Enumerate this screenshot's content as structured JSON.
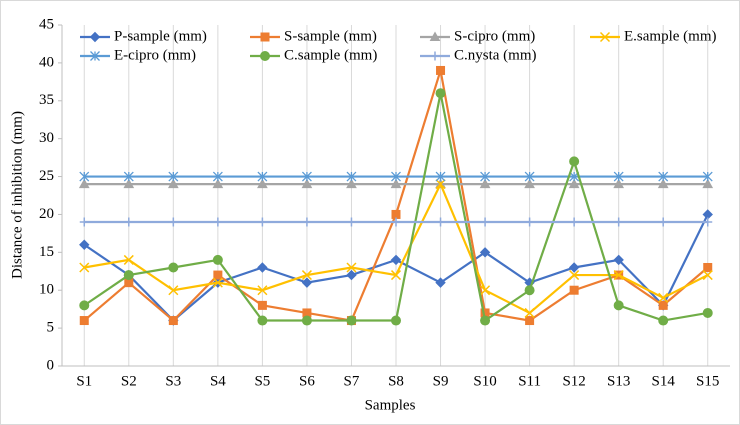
{
  "chart_data": {
    "type": "line",
    "x_label": "Samples",
    "y_label": "Distance of inhibition (mm)",
    "categories": [
      "S1",
      "S2",
      "S3",
      "S4",
      "S5",
      "S6",
      "S7",
      "S8",
      "S9",
      "S10",
      "S11",
      "S12",
      "S13",
      "S14",
      "S15"
    ],
    "series": [
      {
        "name": "P-sample (mm)",
        "color": "#4472c4",
        "marker": "diamond",
        "values": [
          16,
          12,
          6,
          11,
          13,
          11,
          12,
          14,
          11,
          15,
          11,
          13,
          14,
          8,
          20
        ]
      },
      {
        "name": "S-sample (mm)",
        "color": "#ed7d31",
        "marker": "square",
        "values": [
          6,
          11,
          6,
          12,
          8,
          7,
          6,
          20,
          39,
          7,
          6,
          10,
          12,
          8,
          13
        ]
      },
      {
        "name": "S-cipro (mm)",
        "color": "#a5a5a5",
        "marker": "triangle",
        "values": [
          24,
          24,
          24,
          24,
          24,
          24,
          24,
          24,
          24,
          24,
          24,
          24,
          24,
          24,
          24
        ]
      },
      {
        "name": "E.sample (mm)",
        "color": "#ffc000",
        "marker": "x",
        "values": [
          13,
          14,
          10,
          11,
          10,
          12,
          13,
          12,
          24,
          10,
          7,
          12,
          12,
          9,
          12
        ]
      },
      {
        "name": "E-cipro (mm)",
        "color": "#5b9bd5",
        "marker": "star",
        "values": [
          25,
          25,
          25,
          25,
          25,
          25,
          25,
          25,
          25,
          25,
          25,
          25,
          25,
          25,
          25
        ]
      },
      {
        "name": "C.sample (mm)",
        "color": "#70ad47",
        "marker": "circle",
        "values": [
          8,
          12,
          13,
          14,
          6,
          6,
          6,
          6,
          36,
          6,
          10,
          27,
          8,
          6,
          7
        ]
      },
      {
        "name": "C.nysta (mm)",
        "color": "#8faadc",
        "marker": "plus",
        "values": [
          19,
          19,
          19,
          19,
          19,
          19,
          19,
          19,
          19,
          19,
          19,
          19,
          19,
          19,
          19
        ]
      }
    ],
    "ylim": [
      0,
      45
    ],
    "yticks": [
      0,
      5,
      10,
      15,
      20,
      25,
      30,
      35,
      40,
      45
    ],
    "grid": true,
    "legend": "top"
  }
}
